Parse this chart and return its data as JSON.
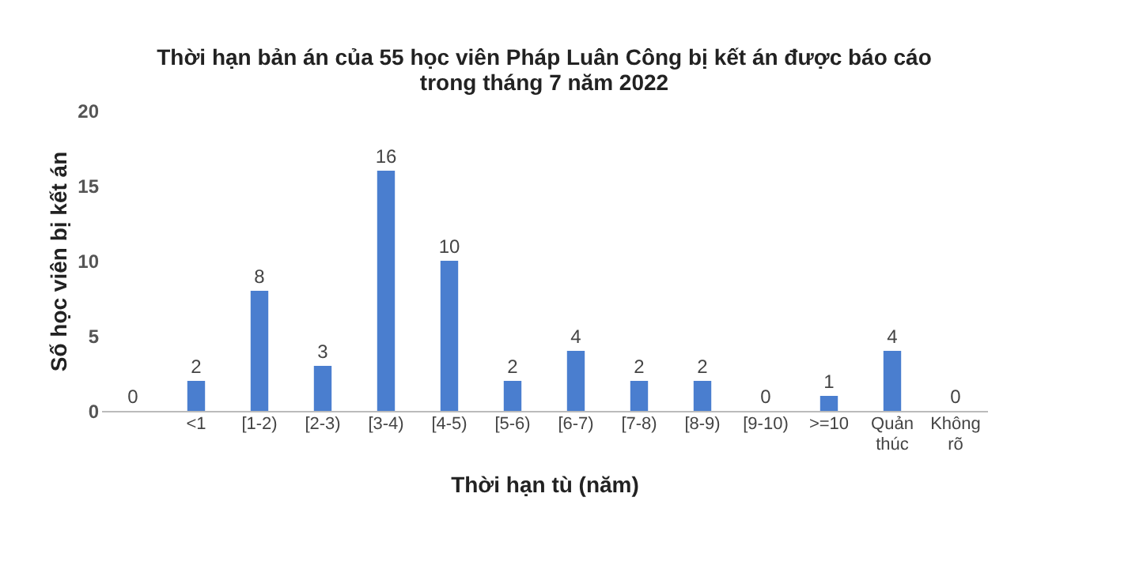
{
  "chart_data": {
    "type": "bar",
    "title": "Thời hạn bản án của 55 học viên Pháp Luân Công bị kết án được báo cáo trong tháng 7 năm 2022",
    "xlabel": "Thời hạn tù (năm)",
    "ylabel": "Số học viên bị kết án",
    "categories": [
      null,
      "<1",
      "[1-2)",
      "[2-3)",
      "[3-4)",
      "[4-5)",
      "[5-6)",
      "[6-7)",
      "[7-8)",
      "[8-9)",
      "[9-10)",
      ">=10",
      "Quản thúc",
      "Không rõ"
    ],
    "values": [
      0,
      2,
      8,
      3,
      16,
      10,
      2,
      4,
      2,
      2,
      0,
      1,
      4,
      0
    ],
    "color": "#4a7ecf",
    "ylim": [
      0,
      20
    ],
    "yticks": [
      0,
      5,
      10,
      15,
      20
    ],
    "grid": false,
    "data_labels": true
  }
}
